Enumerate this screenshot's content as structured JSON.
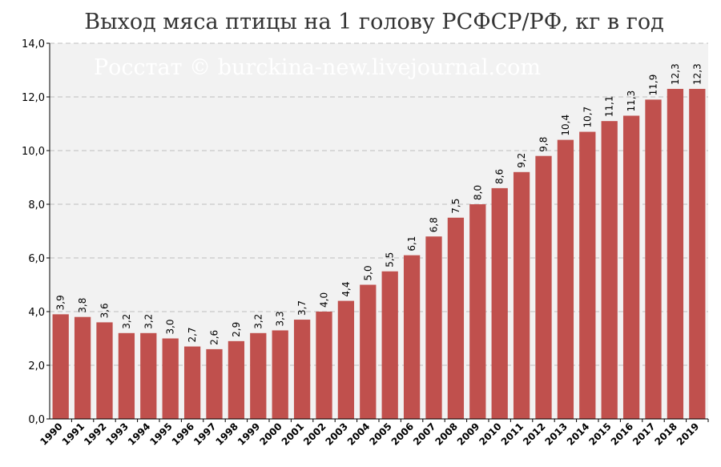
{
  "chart_data": {
    "type": "bar",
    "title": "Выход мяса птицы на 1 голову РСФСР/РФ, кг в год",
    "watermark": "Росстат © burckina-new.livejournal.com",
    "xlabel": "",
    "ylabel": "",
    "ylim": [
      0,
      14
    ],
    "yticks": [
      "0,0",
      "2,0",
      "4,0",
      "6,0",
      "8,0",
      "10,0",
      "12,0",
      "14,0"
    ],
    "grid": true,
    "legend": "none",
    "colors": {
      "bar": "#c0504d",
      "plot_bg": "#f2f2f2",
      "grid": "#bfbfbf"
    },
    "categories": [
      "1990",
      "1991",
      "1992",
      "1993",
      "1994",
      "1995",
      "1996",
      "1997",
      "1998",
      "1999",
      "2000",
      "2001",
      "2002",
      "2003",
      "2004",
      "2005",
      "2006",
      "2007",
      "2008",
      "2009",
      "2010",
      "2011",
      "2012",
      "2013",
      "2014",
      "2015",
      "2016",
      "2017",
      "2018",
      "2019"
    ],
    "values": [
      3.9,
      3.8,
      3.6,
      3.2,
      3.2,
      3.0,
      2.7,
      2.6,
      2.9,
      3.2,
      3.3,
      3.7,
      4.0,
      4.4,
      5.0,
      5.5,
      6.1,
      6.8,
      7.5,
      8.0,
      8.6,
      9.2,
      9.8,
      10.4,
      10.7,
      11.1,
      11.3,
      11.9,
      12.3,
      12.3
    ],
    "value_labels": [
      "3,9",
      "3,8",
      "3,6",
      "3,2",
      "3,2",
      "3,0",
      "2,7",
      "2,6",
      "2,9",
      "3,2",
      "3,3",
      "3,7",
      "4,0",
      "4,4",
      "5,0",
      "5,5",
      "6,1",
      "6,8",
      "7,5",
      "8,0",
      "8,6",
      "9,2",
      "9,8",
      "10,4",
      "10,7",
      "11,1",
      "11,3",
      "11,9",
      "12,3",
      "12,3"
    ]
  }
}
